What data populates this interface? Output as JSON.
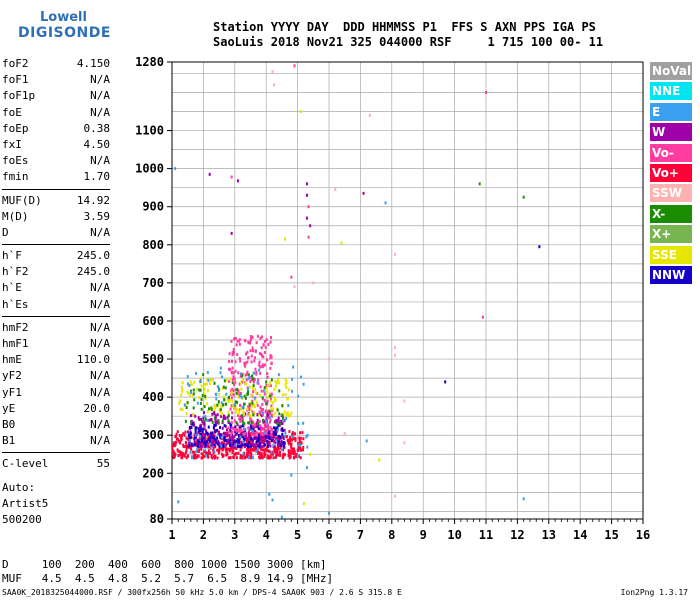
{
  "logo": {
    "line1": "Lowell",
    "line2": "DIGISONDE"
  },
  "header": {
    "line1": "Station YYYY DAY  DDD HHMMSS P1  FFS S AXN PPS IGA PS",
    "line2": "SaoLuis 2018 Nov21 325 044000 RSF     1 715 100 00- 11"
  },
  "params": [
    [
      {
        "name": "foF2",
        "value": "4.150"
      },
      {
        "name": "foF1",
        "value": "N/A"
      },
      {
        "name": "foF1p",
        "value": "N/A"
      },
      {
        "name": "foE",
        "value": "N/A"
      },
      {
        "name": "foEp",
        "value": "0.38"
      },
      {
        "name": "fxI",
        "value": "4.50"
      },
      {
        "name": "foEs",
        "value": "N/A"
      },
      {
        "name": "fmin",
        "value": "1.70"
      }
    ],
    [
      {
        "name": "MUF(D)",
        "value": "14.92"
      },
      {
        "name": "M(D)",
        "value": "3.59"
      },
      {
        "name": "D",
        "value": "N/A"
      }
    ],
    [
      {
        "name": "h`F",
        "value": "245.0"
      },
      {
        "name": "h`F2",
        "value": "245.0"
      },
      {
        "name": "h`E",
        "value": "N/A"
      },
      {
        "name": "h`Es",
        "value": "N/A"
      }
    ],
    [
      {
        "name": "hmF2",
        "value": "N/A"
      },
      {
        "name": "hmF1",
        "value": "N/A"
      },
      {
        "name": "hmE",
        "value": "110.0"
      },
      {
        "name": "yF2",
        "value": "N/A"
      },
      {
        "name": "yF1",
        "value": "N/A"
      },
      {
        "name": "yE",
        "value": "20.0"
      },
      {
        "name": "B0",
        "value": "N/A"
      },
      {
        "name": "B1",
        "value": "N/A"
      }
    ],
    [
      {
        "name": "C-level",
        "value": "55"
      }
    ]
  ],
  "auto": {
    "line1": "Auto:",
    "line2": "Artist5",
    "line3": "500200"
  },
  "table": {
    "d_row": "D     100  200  400  600  800 1000 1500 3000 [km]",
    "muf_row": "MUF   4.5  4.5  4.8  5.2  5.7  6.5  8.9 14.9 [MHz]"
  },
  "footer": {
    "left": "SAA0K_2018325044000.RSF / 300fx256h 50 kHz 5.0 km / DPS-4 SAA0K 903 / 2.6 S 315.8 E",
    "right": "Ion2Png 1.3.17"
  },
  "legend": [
    {
      "label": "NoVal",
      "color": "#a0a0a0"
    },
    {
      "label": "NNE",
      "color": "#00e6f0"
    },
    {
      "label": "E",
      "color": "#3ca0f0"
    },
    {
      "label": "W",
      "color": "#a000a8"
    },
    {
      "label": "Vo-",
      "color": "#ff3ca0"
    },
    {
      "label": "Vo+",
      "color": "#ff0038"
    },
    {
      "label": "SSW",
      "color": "#ffb0b0"
    },
    {
      "label": "X-",
      "color": "#1a8c00"
    },
    {
      "label": "X+",
      "color": "#78b450"
    },
    {
      "label": "SSE",
      "color": "#e6e600"
    },
    {
      "label": "NNW",
      "color": "#1400c8"
    }
  ],
  "chart_data": {
    "type": "scatter",
    "title": "",
    "xlabel": "",
    "ylabel": "",
    "xlim": [
      1,
      16
    ],
    "ylim": [
      80,
      1280
    ],
    "x_ticks": [
      1,
      2,
      3,
      4,
      5,
      6,
      7,
      8,
      9,
      10,
      11,
      12,
      13,
      14,
      15,
      16
    ],
    "y_ticks": [
      80,
      200,
      300,
      400,
      500,
      600,
      700,
      800,
      900,
      1000,
      1100,
      1280
    ],
    "grid": true,
    "clusters": [
      {
        "name": "Vo+",
        "x_range": [
          1.0,
          5.2
        ],
        "y_range": [
          240,
          310
        ],
        "count": 520
      },
      {
        "name": "W",
        "x_range": [
          1.5,
          4.6
        ],
        "y_range": [
          270,
          360
        ],
        "count": 300
      },
      {
        "name": "NNW",
        "x_range": [
          1.5,
          4.6
        ],
        "y_range": [
          270,
          330
        ],
        "count": 160
      },
      {
        "name": "Vo-",
        "x_range": [
          2.8,
          4.2
        ],
        "y_range": [
          300,
          560
        ],
        "count": 260
      },
      {
        "name": "SSE",
        "x_range": [
          1.2,
          4.8
        ],
        "y_range": [
          350,
          450
        ],
        "count": 150
      },
      {
        "name": "X-",
        "x_range": [
          1.4,
          4.6
        ],
        "y_range": [
          330,
          460
        ],
        "count": 90
      },
      {
        "name": "E",
        "x_range": [
          1.4,
          5.4
        ],
        "y_range": [
          240,
          480
        ],
        "count": 90
      }
    ],
    "points": [
      {
        "x": 4.9,
        "y": 1270,
        "series": "Vo-"
      },
      {
        "x": 4.2,
        "y": 1255,
        "series": "SSW"
      },
      {
        "x": 4.25,
        "y": 1220,
        "series": "SSW"
      },
      {
        "x": 11.0,
        "y": 1200,
        "series": "Vo-"
      },
      {
        "x": 5.1,
        "y": 1150,
        "series": "SSE"
      },
      {
        "x": 7.3,
        "y": 1140,
        "series": "SSW"
      },
      {
        "x": 1.1,
        "y": 1000,
        "series": "E"
      },
      {
        "x": 2.2,
        "y": 985,
        "series": "W"
      },
      {
        "x": 2.9,
        "y": 978,
        "series": "Vo-"
      },
      {
        "x": 3.1,
        "y": 968,
        "series": "W"
      },
      {
        "x": 5.3,
        "y": 960,
        "series": "W"
      },
      {
        "x": 5.3,
        "y": 930,
        "series": "W"
      },
      {
        "x": 5.35,
        "y": 900,
        "series": "Vo-"
      },
      {
        "x": 5.3,
        "y": 870,
        "series": "W"
      },
      {
        "x": 5.4,
        "y": 850,
        "series": "W"
      },
      {
        "x": 5.35,
        "y": 820,
        "series": "Vo-"
      },
      {
        "x": 6.2,
        "y": 945,
        "series": "SSW"
      },
      {
        "x": 7.1,
        "y": 935,
        "series": "W"
      },
      {
        "x": 7.8,
        "y": 910,
        "series": "E"
      },
      {
        "x": 10.8,
        "y": 960,
        "series": "X-"
      },
      {
        "x": 12.2,
        "y": 925,
        "series": "X-"
      },
      {
        "x": 2.9,
        "y": 830,
        "series": "W"
      },
      {
        "x": 4.6,
        "y": 815,
        "series": "SSE"
      },
      {
        "x": 6.4,
        "y": 805,
        "series": "SSE"
      },
      {
        "x": 12.7,
        "y": 795,
        "series": "NNW"
      },
      {
        "x": 8.1,
        "y": 775,
        "series": "SSW"
      },
      {
        "x": 4.8,
        "y": 715,
        "series": "Vo-"
      },
      {
        "x": 5.5,
        "y": 700,
        "series": "SSW"
      },
      {
        "x": 4.9,
        "y": 690,
        "series": "SSW"
      },
      {
        "x": 10.9,
        "y": 610,
        "series": "Vo-"
      },
      {
        "x": 8.1,
        "y": 530,
        "series": "SSW"
      },
      {
        "x": 8.1,
        "y": 510,
        "series": "SSW"
      },
      {
        "x": 6.0,
        "y": 500,
        "series": "SSW"
      },
      {
        "x": 9.7,
        "y": 440,
        "series": "NNW"
      },
      {
        "x": 8.4,
        "y": 390,
        "series": "SSW"
      },
      {
        "x": 6.5,
        "y": 305,
        "series": "SSW"
      },
      {
        "x": 7.2,
        "y": 285,
        "series": "E"
      },
      {
        "x": 8.4,
        "y": 280,
        "series": "SSW"
      },
      {
        "x": 5.4,
        "y": 250,
        "series": "SSE"
      },
      {
        "x": 7.6,
        "y": 235,
        "series": "SSE"
      },
      {
        "x": 5.3,
        "y": 215,
        "series": "E"
      },
      {
        "x": 4.1,
        "y": 145,
        "series": "E"
      },
      {
        "x": 4.2,
        "y": 130,
        "series": "E"
      },
      {
        "x": 4.8,
        "y": 195,
        "series": "E"
      },
      {
        "x": 8.1,
        "y": 140,
        "series": "SSW"
      },
      {
        "x": 12.2,
        "y": 133,
        "series": "E"
      },
      {
        "x": 5.2,
        "y": 120,
        "series": "SSE"
      },
      {
        "x": 1.2,
        "y": 125,
        "series": "E"
      },
      {
        "x": 6.0,
        "y": 95,
        "series": "E"
      },
      {
        "x": 4.5,
        "y": 85,
        "series": "E"
      }
    ]
  }
}
